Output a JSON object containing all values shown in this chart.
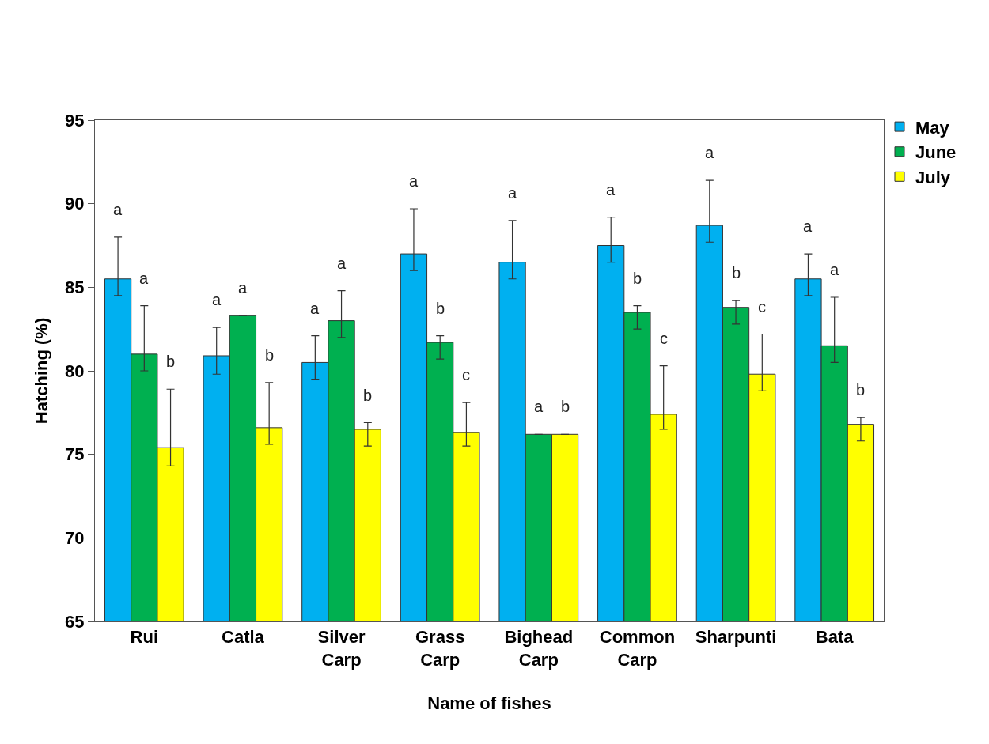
{
  "chart_data": {
    "type": "bar",
    "xlabel": "Name of fishes",
    "ylabel": "Hatching (%)",
    "categories": [
      "Rui",
      "Catla",
      "Silver Carp",
      "Grass Carp",
      "Bighead Carp",
      "Common Carp",
      "Sharpunti",
      "Bata"
    ],
    "series": [
      {
        "name": "May",
        "color": "#00b0f0",
        "values": [
          85.5,
          80.9,
          80.5,
          87.0,
          86.5,
          87.5,
          88.7,
          85.5
        ],
        "errors": [
          [
            84.5,
            88.0
          ],
          [
            79.8,
            82.6
          ],
          [
            79.5,
            82.1
          ],
          [
            86.0,
            89.7
          ],
          [
            85.5,
            89.0
          ],
          [
            86.5,
            89.2
          ],
          [
            87.7,
            91.4
          ],
          [
            84.5,
            87.0
          ]
        ]
      },
      {
        "name": "June",
        "color": "#00b050",
        "values": [
          81.0,
          83.3,
          83.0,
          81.7,
          76.2,
          83.5,
          83.8,
          81.5
        ],
        "errors": [
          [
            80.0,
            83.9
          ],
          null,
          [
            82.0,
            84.8
          ],
          [
            80.7,
            82.1
          ],
          null,
          [
            82.5,
            83.9
          ],
          [
            82.8,
            84.2
          ],
          [
            80.5,
            84.4
          ]
        ]
      },
      {
        "name": "July",
        "color": "#ffff00",
        "values": [
          75.4,
          76.6,
          76.5,
          76.3,
          76.2,
          77.4,
          79.8,
          76.8
        ],
        "errors": [
          [
            74.3,
            78.9
          ],
          [
            75.6,
            79.3
          ],
          [
            75.5,
            76.9
          ],
          [
            75.5,
            78.1
          ],
          null,
          [
            76.5,
            80.3
          ],
          [
            78.8,
            82.2
          ],
          [
            75.8,
            77.2
          ]
        ]
      }
    ],
    "ylim": [
      65,
      95
    ],
    "yticks": [
      65,
      70,
      75,
      80,
      85,
      90,
      95
    ],
    "grid": false,
    "legend": "top right",
    "annotations": [
      "a",
      "a",
      "b",
      "a",
      "a",
      "b",
      "a",
      "a",
      "b",
      "a",
      "b",
      "c",
      "a",
      "a",
      "b",
      "a",
      "b",
      "c",
      "a",
      "b",
      "c",
      "a",
      "a",
      "b"
    ]
  }
}
